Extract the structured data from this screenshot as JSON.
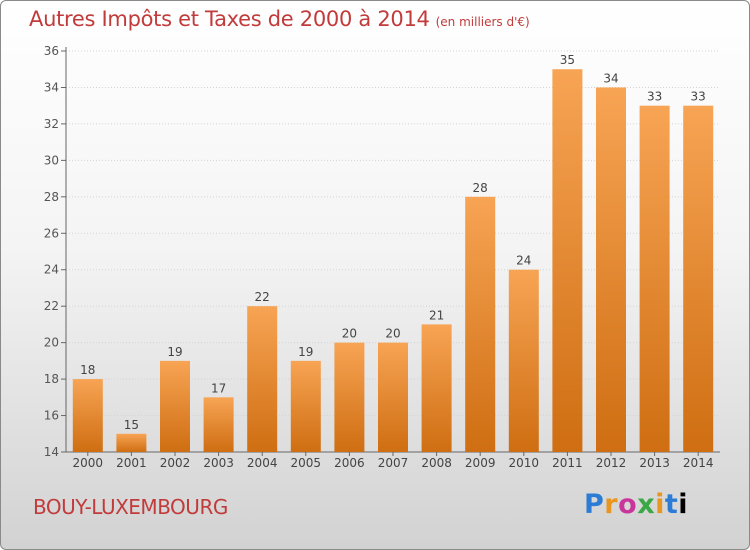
{
  "header": {
    "title": "Autres Impôts et Taxes de 2000 à 2014",
    "unit": "(en milliers d'€)"
  },
  "footer": {
    "place": "BOUY-LUXEMBOURG",
    "logo_letters": [
      "P",
      "r",
      "o",
      "x",
      "i",
      "t",
      "i"
    ]
  },
  "colors": {
    "bar_light": "#f7a454",
    "bar_dark": "#cf6e12",
    "text_red": "#c23b3b"
  },
  "chart_data": {
    "type": "bar",
    "title": "Autres Impôts et Taxes de 2000 à 2014",
    "ylabel": "(en milliers d'€)",
    "categories": [
      "2000",
      "2001",
      "2002",
      "2003",
      "2004",
      "2005",
      "2006",
      "2007",
      "2008",
      "2009",
      "2010",
      "2011",
      "2012",
      "2013",
      "2014"
    ],
    "values": [
      18,
      15,
      19,
      17,
      22,
      19,
      20,
      20,
      21,
      28,
      24,
      35,
      34,
      33,
      33
    ],
    "ylim": [
      14,
      36
    ],
    "yticks": [
      14,
      16,
      18,
      20,
      22,
      24,
      26,
      28,
      30,
      32,
      34,
      36
    ],
    "grid": true,
    "legend": "none"
  }
}
